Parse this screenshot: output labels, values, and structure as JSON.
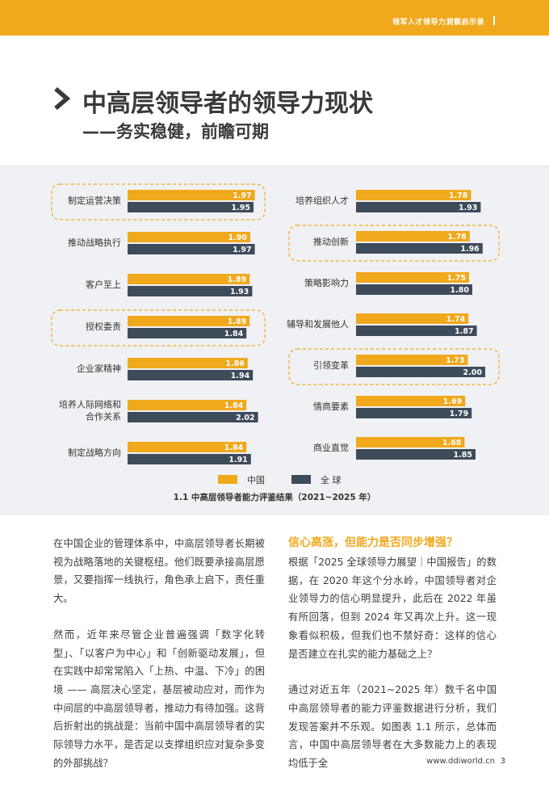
{
  "header": {
    "tagline": "领军人才领导力洞察启示录"
  },
  "title": "中高层领导者的领导力现状",
  "subtitle": "——务实稳健，前瞻可期",
  "colors": {
    "china": "#f0a81c",
    "global": "#3e4b5b",
    "highlight": "#f0a81c"
  },
  "chart_data": {
    "type": "bar",
    "orientation": "horizontal",
    "title": "1.1 中高层领导者能力评鉴结果（2021~2025 年）",
    "legend": [
      {
        "name": "中国",
        "color": "#f0a81c"
      },
      {
        "name": "全 球",
        "color": "#3e4b5b"
      }
    ],
    "xlim": [
      0,
      2.2
    ],
    "groups": [
      {
        "categories": [
          "制定运营决策",
          "推动战略执行",
          "客户至上",
          "授权委责",
          "企业家精神",
          "培养人际网络和\n合作关系",
          "制定战略方向"
        ],
        "series": [
          {
            "name": "中国",
            "values": [
              1.97,
              1.9,
              1.89,
              1.89,
              1.86,
              1.84,
              1.84
            ]
          },
          {
            "name": "全 球",
            "values": [
              1.95,
              1.97,
              1.93,
              1.84,
              1.94,
              2.02,
              1.91
            ]
          }
        ],
        "highlighted": [
          "制定运营决策",
          "授权委责"
        ]
      },
      {
        "categories": [
          "培养组织人才",
          "推动创新",
          "策略影响力",
          "辅导和发展他人",
          "引领变革",
          "情商要素",
          "商业直觉"
        ],
        "series": [
          {
            "name": "中国",
            "values": [
              1.78,
              1.76,
              1.75,
              1.74,
              1.73,
              1.69,
              1.68
            ]
          },
          {
            "name": "全 球",
            "values": [
              1.93,
              1.96,
              1.8,
              1.87,
              2.0,
              1.79,
              1.85
            ]
          }
        ],
        "highlighted": [
          "推动创新",
          "引领变革"
        ]
      }
    ]
  },
  "body": {
    "left": [
      "在中国企业的管理体系中，中高层领导者长期被视为战略落地的关键枢纽。他们既要承接高层愿景，又要指挥一线执行，角色承上启下，责任重大。",
      "然而，近年来尽管企业普遍强调「数字化转型」、「以客户为中心」和「创新驱动发展」，但在实践中却常常陷入「上热、中温、下冷」的困境 —— 高层决心坚定，基层被动应对，而作为中间层的中高层领导者，推动力有待加强。这背后折射出的挑战是：当前中国中高层领导者的实际领导力水平，是否足以支撑组织应对复杂多变的外部挑战？"
    ],
    "right_heading": "信心高涨，但能力是否同步增强？",
    "right": [
      "根据「2025 全球领导力展望｜中国报告」的数据，在 2020 年这个分水岭，中国领导者对企业领导力的信心明显提升，此后在 2022 年虽有所回落，但到 2024 年又再次上升。这一现象看似积极，但我们也不禁好奇：这样的信心是否建立在扎实的能力基础之上？",
      "通过对近五年（2021~2025 年）数千名中国中高层领导者的能力评鉴数据进行分析，我们发现答案并不乐观。如图表 1.1 所示，总体而言，中国中高层领导者在大多数能力上的表现均低于全"
    ]
  },
  "footer": {
    "url": "www.ddiworld.cn",
    "page": "3"
  }
}
